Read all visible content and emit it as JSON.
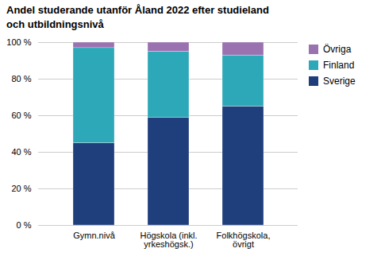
{
  "chart_data": {
    "type": "bar",
    "title": "Andel studerande utanför Åland 2022 efter studieland\noch utbildningsnivå",
    "categories": [
      "Gymn.nivå",
      "Högskola (inkl.\nyrkeshögsk.)",
      "Folkhögskola,\növrigt"
    ],
    "series": [
      {
        "name": "Sverige",
        "color": "#1F3E7C",
        "values": [
          45,
          59,
          65
        ]
      },
      {
        "name": "Finland",
        "color": "#2DA8B8",
        "values": [
          52,
          36,
          28
        ]
      },
      {
        "name": "Övriga",
        "color": "#9B72B0",
        "values": [
          3,
          5,
          7
        ]
      }
    ],
    "stacked": true,
    "ylim": [
      0,
      100
    ],
    "yticks": [
      {
        "value": 0,
        "label": "0 %"
      },
      {
        "value": 20,
        "label": "20 %"
      },
      {
        "value": 40,
        "label": "40 %"
      },
      {
        "value": 60,
        "label": "60 %"
      },
      {
        "value": 80,
        "label": "80 %"
      },
      {
        "value": 100,
        "label": "100 %"
      }
    ],
    "grid": true,
    "legend": "upper right"
  }
}
